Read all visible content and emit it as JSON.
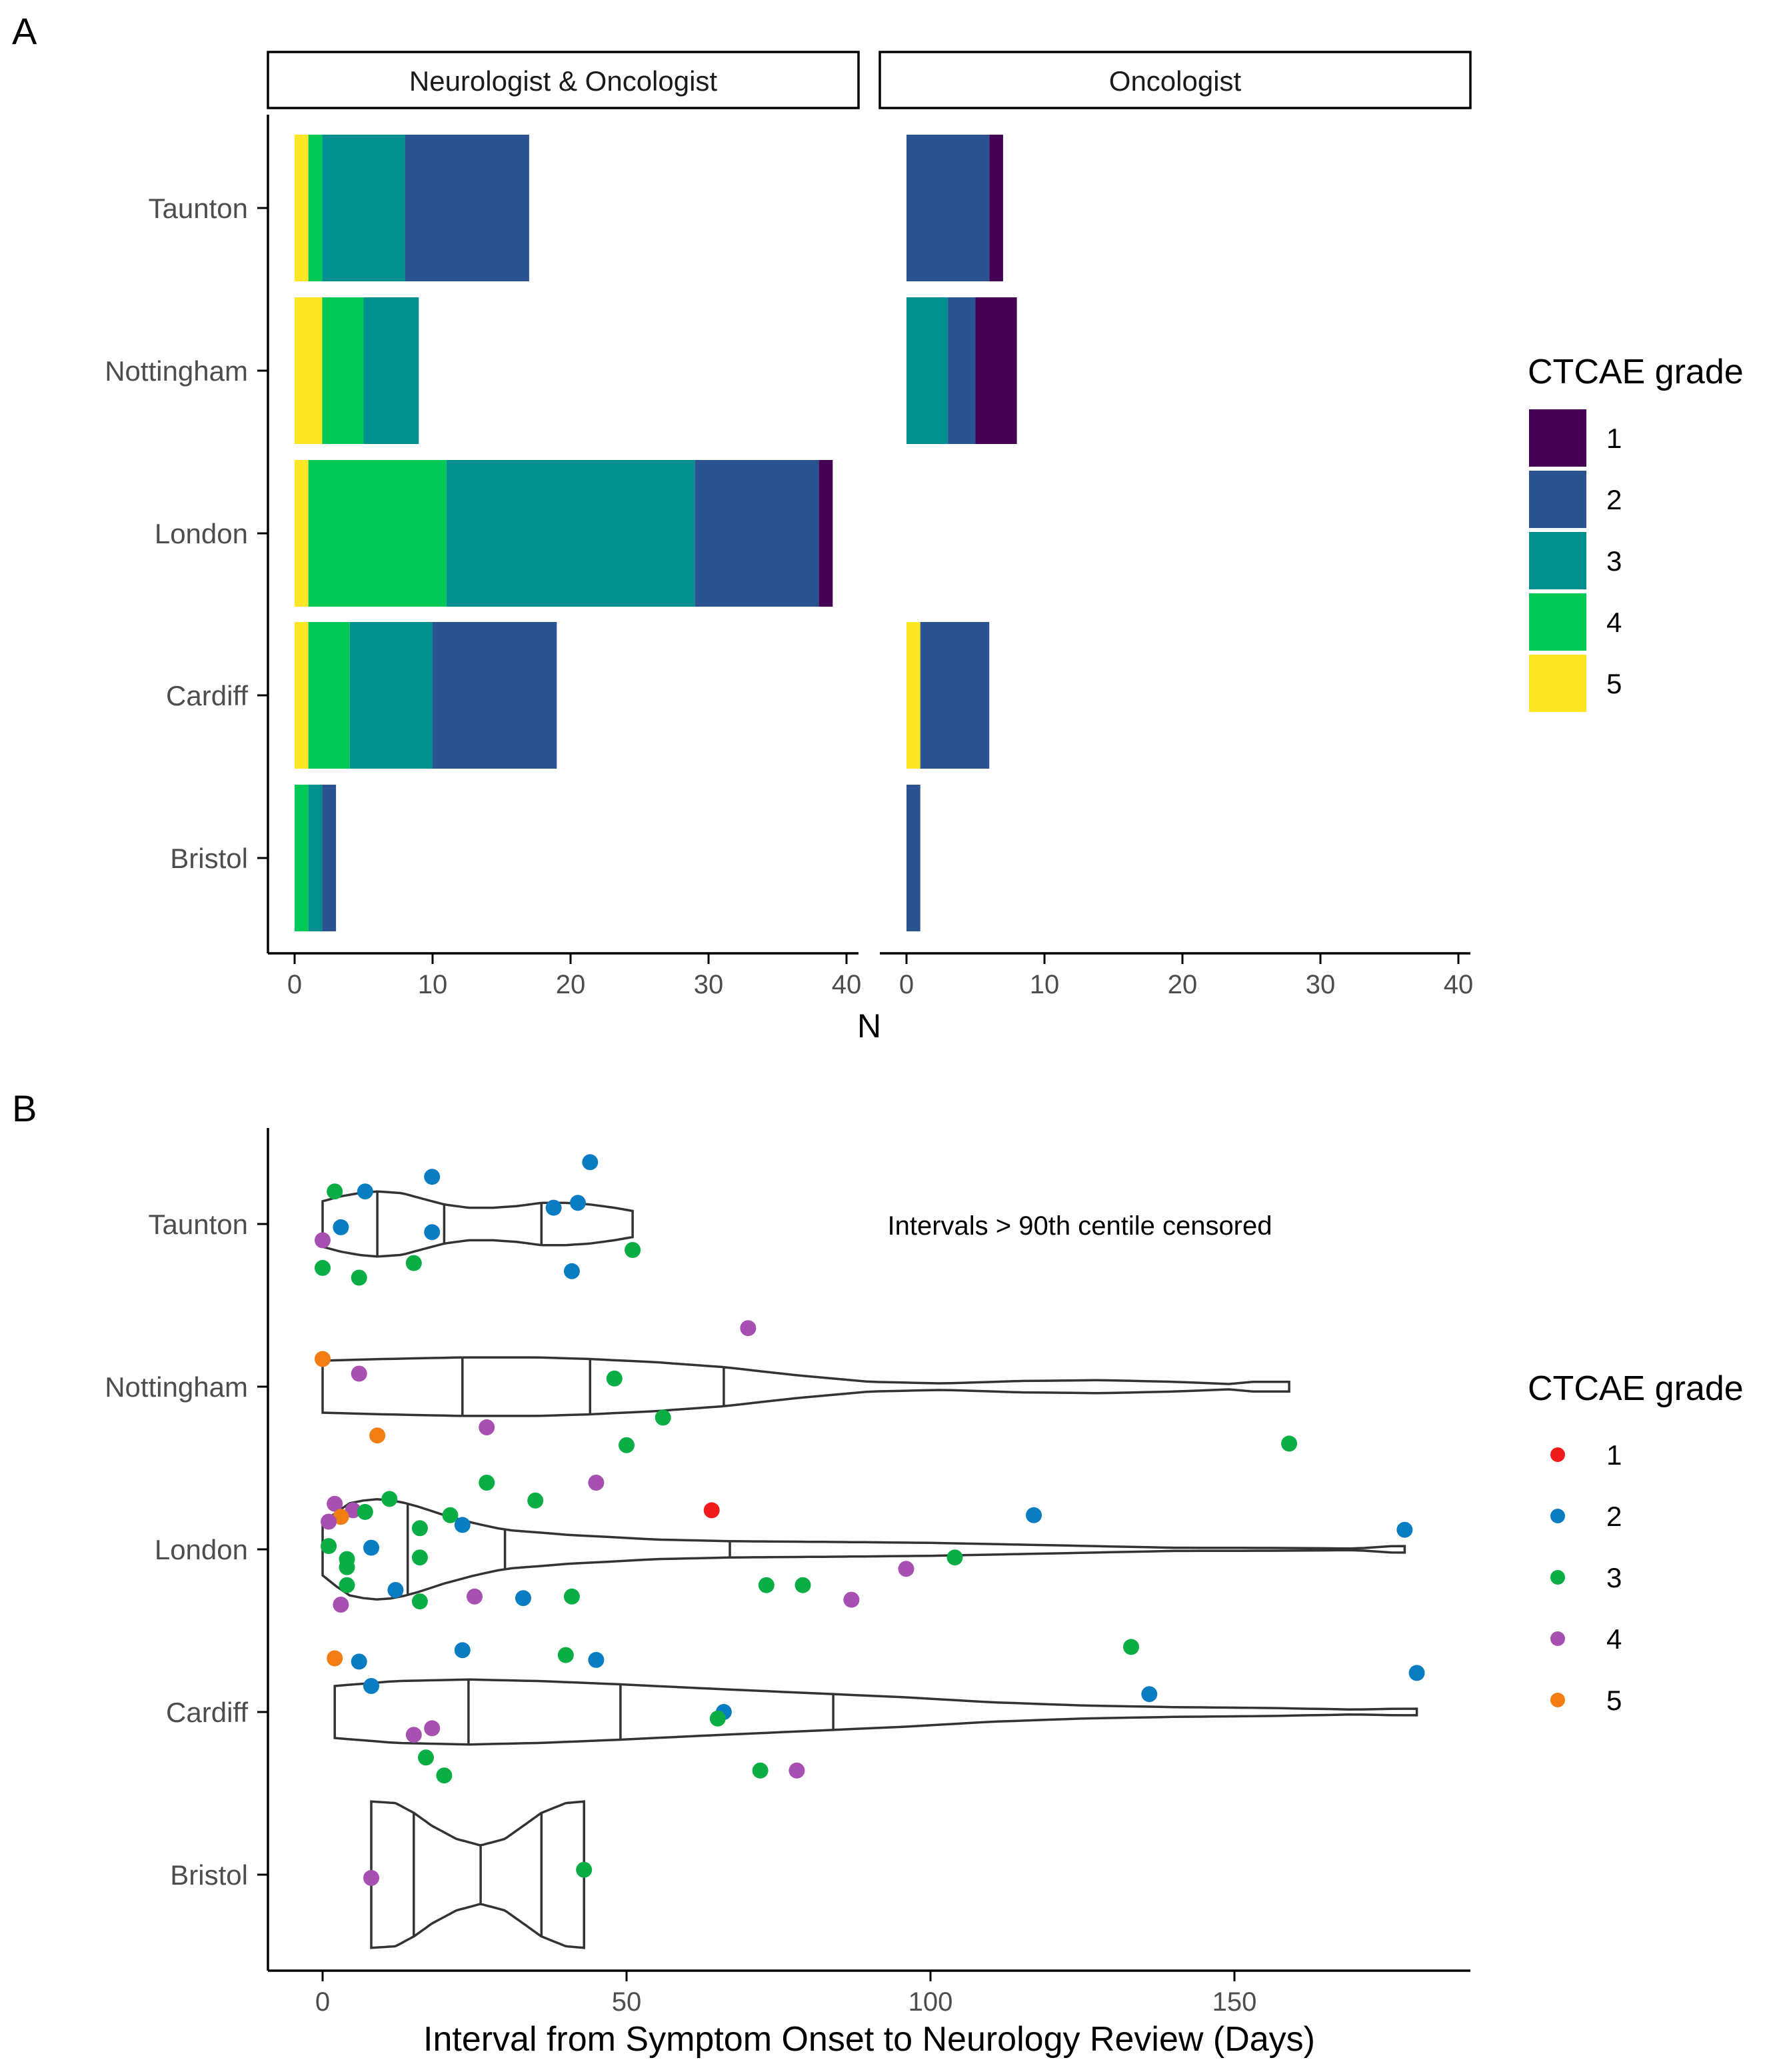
{
  "panel_labels": {
    "a": "A",
    "b": "B"
  },
  "colors": {
    "bar_grade": {
      "1": "#440154",
      "2": "#2b5392",
      "3": "#009090",
      "4": "#00c957",
      "5": "#fde725"
    },
    "point_grade": {
      "1": "#f01c1c",
      "2": "#0a7dc2",
      "3": "#0aae44",
      "4": "#a84fb2",
      "5": "#f27d12"
    },
    "axis": "#000000",
    "tick_text": "#4d4d4d"
  },
  "chart_data": [
    {
      "type": "bar",
      "orientation": "horizontal",
      "stacked": true,
      "title": "",
      "facets": [
        "Neurologist & Oncologist",
        "Oncologist"
      ],
      "categories": [
        "Taunton",
        "Nottingham",
        "London",
        "Cardiff",
        "Bristol"
      ],
      "xlabel": "N",
      "ylabel": "",
      "xlim": [
        0,
        40
      ],
      "xticks": [
        "0",
        "10",
        "20",
        "30",
        "40"
      ],
      "stack_order": [
        "5",
        "4",
        "3",
        "2",
        "1"
      ],
      "series": [
        {
          "facet": "Neurologist & Oncologist",
          "name": "5",
          "values": [
            1,
            2,
            1,
            1,
            0
          ]
        },
        {
          "facet": "Neurologist & Oncologist",
          "name": "4",
          "values": [
            1,
            3,
            10,
            3,
            1
          ]
        },
        {
          "facet": "Neurologist & Oncologist",
          "name": "3",
          "values": [
            6,
            4,
            18,
            6,
            1
          ]
        },
        {
          "facet": "Neurologist & Oncologist",
          "name": "2",
          "values": [
            9,
            0,
            9,
            9,
            1
          ]
        },
        {
          "facet": "Neurologist & Oncologist",
          "name": "1",
          "values": [
            0,
            0,
            1,
            0,
            0
          ]
        },
        {
          "facet": "Oncologist",
          "name": "5",
          "values": [
            0,
            0,
            0,
            1,
            0
          ]
        },
        {
          "facet": "Oncologist",
          "name": "4",
          "values": [
            0,
            0,
            0,
            0,
            0
          ]
        },
        {
          "facet": "Oncologist",
          "name": "3",
          "values": [
            0,
            3,
            0,
            0,
            0
          ]
        },
        {
          "facet": "Oncologist",
          "name": "2",
          "values": [
            6,
            2,
            0,
            5,
            1
          ]
        },
        {
          "facet": "Oncologist",
          "name": "1",
          "values": [
            1,
            3,
            0,
            0,
            0
          ]
        }
      ],
      "legend": {
        "title": "CTCAE grade",
        "entries": [
          "1",
          "2",
          "3",
          "4",
          "5"
        ],
        "position": "right"
      }
    },
    {
      "type": "violin",
      "title": "",
      "categories": [
        "Taunton",
        "Nottingham",
        "London",
        "Cardiff",
        "Bristol"
      ],
      "xlabel": "Interval from Symptom Onset to Neurology Review (Days)",
      "ylabel": "",
      "xlim": [
        -8,
        188
      ],
      "xticks": [
        "0",
        "50",
        "100",
        "150"
      ],
      "annotation": "Intervals > 90th centile censored",
      "violins": [
        {
          "category": "Taunton",
          "min": 0,
          "max": 51,
          "quantiles": [
            9,
            20,
            36
          ],
          "profile": [
            [
              0,
              0.14
            ],
            [
              3,
              0.17
            ],
            [
              6,
              0.19
            ],
            [
              9,
              0.2
            ],
            [
              13,
              0.19
            ],
            [
              16,
              0.16
            ],
            [
              20,
              0.12
            ],
            [
              24,
              0.1
            ],
            [
              28,
              0.1
            ],
            [
              32,
              0.11
            ],
            [
              36,
              0.13
            ],
            [
              40,
              0.13
            ],
            [
              44,
              0.12
            ],
            [
              48,
              0.1
            ],
            [
              51,
              0.08
            ]
          ]
        },
        {
          "category": "Nottingham",
          "min": 0,
          "max": 159,
          "quantiles": [
            23,
            44,
            66
          ],
          "profile": [
            [
              0,
              0.16
            ],
            [
              10,
              0.17
            ],
            [
              23,
              0.18
            ],
            [
              35,
              0.18
            ],
            [
              44,
              0.17
            ],
            [
              55,
              0.15
            ],
            [
              66,
              0.12
            ],
            [
              78,
              0.07
            ],
            [
              90,
              0.03
            ],
            [
              102,
              0.02
            ],
            [
              115,
              0.035
            ],
            [
              128,
              0.04
            ],
            [
              140,
              0.03
            ],
            [
              150,
              0.015
            ],
            [
              152,
              0.03
            ],
            [
              159,
              0.03
            ]
          ]
        },
        {
          "category": "London",
          "min": 0,
          "max": 178,
          "quantiles": [
            14,
            30,
            67
          ],
          "profile": [
            [
              0,
              0.16
            ],
            [
              4,
              0.28
            ],
            [
              8,
              0.31
            ],
            [
              12,
              0.3
            ],
            [
              16,
              0.26
            ],
            [
              20,
              0.21
            ],
            [
              25,
              0.16
            ],
            [
              30,
              0.12
            ],
            [
              40,
              0.09
            ],
            [
              55,
              0.06
            ],
            [
              67,
              0.05
            ],
            [
              85,
              0.045
            ],
            [
              100,
              0.04
            ],
            [
              120,
              0.025
            ],
            [
              140,
              0.01
            ],
            [
              160,
              0.008
            ],
            [
              170,
              0.005
            ],
            [
              176,
              0.02
            ],
            [
              178,
              0.02
            ]
          ]
        },
        {
          "category": "Cardiff",
          "min": 2,
          "max": 180,
          "quantiles": [
            24,
            49,
            84
          ],
          "profile": [
            [
              2,
              0.16
            ],
            [
              12,
              0.19
            ],
            [
              24,
              0.2
            ],
            [
              36,
              0.19
            ],
            [
              49,
              0.17
            ],
            [
              60,
              0.15
            ],
            [
              72,
              0.13
            ],
            [
              84,
              0.11
            ],
            [
              96,
              0.09
            ],
            [
              110,
              0.06
            ],
            [
              125,
              0.04
            ],
            [
              140,
              0.03
            ],
            [
              155,
              0.025
            ],
            [
              170,
              0.015
            ],
            [
              176,
              0.02
            ],
            [
              180,
              0.02
            ]
          ]
        },
        {
          "category": "Bristol",
          "min": 8,
          "max": 43,
          "quantiles": [
            15,
            26,
            36
          ],
          "profile": [
            [
              8,
              0.45
            ],
            [
              12,
              0.44
            ],
            [
              15,
              0.38
            ],
            [
              18,
              0.3
            ],
            [
              22,
              0.22
            ],
            [
              26,
              0.18
            ],
            [
              30,
              0.22
            ],
            [
              33,
              0.3
            ],
            [
              36,
              0.38
            ],
            [
              40,
              0.44
            ],
            [
              43,
              0.45
            ]
          ]
        }
      ],
      "points": [
        {
          "category": "Taunton",
          "x": 2,
          "offset": 0.2,
          "grade": "3"
        },
        {
          "category": "Taunton",
          "x": 7,
          "offset": 0.2,
          "grade": "2"
        },
        {
          "category": "Taunton",
          "x": 18,
          "offset": 0.29,
          "grade": "2"
        },
        {
          "category": "Taunton",
          "x": 44,
          "offset": 0.38,
          "grade": "2"
        },
        {
          "category": "Taunton",
          "x": 38,
          "offset": 0.1,
          "grade": "2"
        },
        {
          "category": "Taunton",
          "x": 42,
          "offset": 0.13,
          "grade": "2"
        },
        {
          "category": "Taunton",
          "x": 3,
          "offset": -0.02,
          "grade": "2"
        },
        {
          "category": "Taunton",
          "x": 18,
          "offset": -0.05,
          "grade": "2"
        },
        {
          "category": "Taunton",
          "x": 0,
          "offset": -0.1,
          "grade": "4"
        },
        {
          "category": "Taunton",
          "x": 51,
          "offset": -0.16,
          "grade": "3"
        },
        {
          "category": "Taunton",
          "x": 15,
          "offset": -0.24,
          "grade": "3"
        },
        {
          "category": "Taunton",
          "x": 0,
          "offset": -0.27,
          "grade": "3"
        },
        {
          "category": "Taunton",
          "x": 6,
          "offset": -0.33,
          "grade": "3"
        },
        {
          "category": "Taunton",
          "x": 41,
          "offset": -0.29,
          "grade": "2"
        },
        {
          "category": "Nottingham",
          "x": 70,
          "offset": 0.36,
          "grade": "4"
        },
        {
          "category": "Nottingham",
          "x": 0,
          "offset": 0.17,
          "grade": "5"
        },
        {
          "category": "Nottingham",
          "x": 6,
          "offset": 0.08,
          "grade": "4"
        },
        {
          "category": "Nottingham",
          "x": 48,
          "offset": 0.05,
          "grade": "3"
        },
        {
          "category": "Nottingham",
          "x": 56,
          "offset": -0.19,
          "grade": "3"
        },
        {
          "category": "Nottingham",
          "x": 27,
          "offset": -0.25,
          "grade": "4"
        },
        {
          "category": "Nottingham",
          "x": 9,
          "offset": -0.3,
          "grade": "5"
        },
        {
          "category": "Nottingham",
          "x": 50,
          "offset": -0.36,
          "grade": "3"
        },
        {
          "category": "Nottingham",
          "x": 159,
          "offset": -0.35,
          "grade": "3"
        },
        {
          "category": "London",
          "x": 27,
          "offset": 0.41,
          "grade": "3"
        },
        {
          "category": "London",
          "x": 45,
          "offset": 0.41,
          "grade": "4"
        },
        {
          "category": "London",
          "x": 35,
          "offset": 0.3,
          "grade": "3"
        },
        {
          "category": "London",
          "x": 11,
          "offset": 0.31,
          "grade": "3"
        },
        {
          "category": "London",
          "x": 2,
          "offset": 0.28,
          "grade": "4"
        },
        {
          "category": "London",
          "x": 5,
          "offset": 0.24,
          "grade": "4"
        },
        {
          "category": "London",
          "x": 7,
          "offset": 0.23,
          "grade": "3"
        },
        {
          "category": "London",
          "x": 3,
          "offset": 0.2,
          "grade": "3"
        },
        {
          "category": "London",
          "x": 3,
          "offset": 0.2,
          "grade": "5"
        },
        {
          "category": "London",
          "x": 1,
          "offset": 0.17,
          "grade": "4"
        },
        {
          "category": "London",
          "x": 21,
          "offset": 0.21,
          "grade": "3"
        },
        {
          "category": "London",
          "x": 23,
          "offset": 0.15,
          "grade": "2"
        },
        {
          "category": "London",
          "x": 64,
          "offset": 0.24,
          "grade": "1"
        },
        {
          "category": "London",
          "x": 117,
          "offset": 0.21,
          "grade": "2"
        },
        {
          "category": "London",
          "x": 178,
          "offset": 0.12,
          "grade": "2"
        },
        {
          "category": "London",
          "x": 16,
          "offset": 0.13,
          "grade": "3"
        },
        {
          "category": "London",
          "x": 1,
          "offset": 0.02,
          "grade": "3"
        },
        {
          "category": "London",
          "x": 8,
          "offset": 0.01,
          "grade": "2"
        },
        {
          "category": "London",
          "x": 16,
          "offset": -0.05,
          "grade": "3"
        },
        {
          "category": "London",
          "x": 4,
          "offset": -0.06,
          "grade": "3"
        },
        {
          "category": "London",
          "x": 4,
          "offset": -0.11,
          "grade": "3"
        },
        {
          "category": "London",
          "x": 4,
          "offset": -0.22,
          "grade": "3"
        },
        {
          "category": "London",
          "x": 12,
          "offset": -0.25,
          "grade": "2"
        },
        {
          "category": "London",
          "x": 16,
          "offset": -0.32,
          "grade": "3"
        },
        {
          "category": "London",
          "x": 3,
          "offset": -0.34,
          "grade": "4"
        },
        {
          "category": "London",
          "x": 25,
          "offset": -0.29,
          "grade": "4"
        },
        {
          "category": "London",
          "x": 33,
          "offset": -0.3,
          "grade": "2"
        },
        {
          "category": "London",
          "x": 41,
          "offset": -0.29,
          "grade": "3"
        },
        {
          "category": "London",
          "x": 73,
          "offset": -0.22,
          "grade": "3"
        },
        {
          "category": "London",
          "x": 79,
          "offset": -0.22,
          "grade": "3"
        },
        {
          "category": "London",
          "x": 87,
          "offset": -0.31,
          "grade": "4"
        },
        {
          "category": "London",
          "x": 96,
          "offset": -0.12,
          "grade": "4"
        },
        {
          "category": "London",
          "x": 104,
          "offset": -0.05,
          "grade": "3"
        },
        {
          "category": "Cardiff",
          "x": 2,
          "offset": 0.33,
          "grade": "5"
        },
        {
          "category": "Cardiff",
          "x": 6,
          "offset": 0.31,
          "grade": "2"
        },
        {
          "category": "Cardiff",
          "x": 23,
          "offset": 0.38,
          "grade": "2"
        },
        {
          "category": "Cardiff",
          "x": 40,
          "offset": 0.35,
          "grade": "3"
        },
        {
          "category": "Cardiff",
          "x": 45,
          "offset": 0.32,
          "grade": "2"
        },
        {
          "category": "Cardiff",
          "x": 133,
          "offset": 0.4,
          "grade": "3"
        },
        {
          "category": "Cardiff",
          "x": 180,
          "offset": 0.24,
          "grade": "2"
        },
        {
          "category": "Cardiff",
          "x": 136,
          "offset": 0.11,
          "grade": "2"
        },
        {
          "category": "Cardiff",
          "x": 8,
          "offset": 0.16,
          "grade": "2"
        },
        {
          "category": "Cardiff",
          "x": 66,
          "offset": 0.0,
          "grade": "2"
        },
        {
          "category": "Cardiff",
          "x": 65,
          "offset": -0.04,
          "grade": "3"
        },
        {
          "category": "Cardiff",
          "x": 18,
          "offset": -0.1,
          "grade": "4"
        },
        {
          "category": "Cardiff",
          "x": 15,
          "offset": -0.14,
          "grade": "4"
        },
        {
          "category": "Cardiff",
          "x": 17,
          "offset": -0.28,
          "grade": "3"
        },
        {
          "category": "Cardiff",
          "x": 20,
          "offset": -0.39,
          "grade": "3"
        },
        {
          "category": "Cardiff",
          "x": 72,
          "offset": -0.36,
          "grade": "3"
        },
        {
          "category": "Cardiff",
          "x": 78,
          "offset": -0.36,
          "grade": "4"
        },
        {
          "category": "Bristol",
          "x": 8,
          "offset": -0.02,
          "grade": "4"
        },
        {
          "category": "Bristol",
          "x": 43,
          "offset": 0.03,
          "grade": "3"
        }
      ],
      "legend": {
        "title": "CTCAE grade",
        "entries": [
          "1",
          "2",
          "3",
          "4",
          "5"
        ],
        "position": "right"
      }
    }
  ]
}
